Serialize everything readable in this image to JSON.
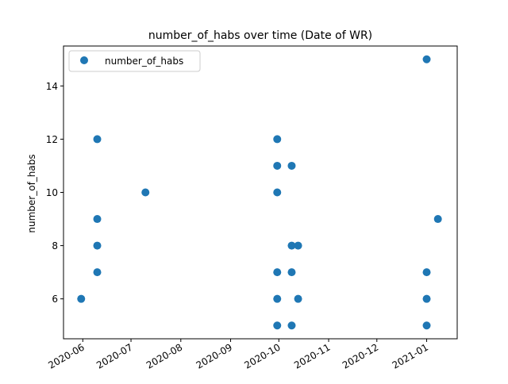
{
  "chart_data": {
    "type": "scatter",
    "title": "number_of_habs over time (Date of WR)",
    "xlabel": "",
    "ylabel": "number_of_habs",
    "x_type": "date",
    "xlim": [
      "2020-05-20",
      "2021-01-20"
    ],
    "ylim": [
      4.5,
      15.5
    ],
    "x_ticks": [
      "2020-06-01",
      "2020-07-01",
      "2020-08-01",
      "2020-09-01",
      "2020-10-01",
      "2020-11-01",
      "2020-12-01",
      "2021-01-01"
    ],
    "x_tick_labels": [
      "2020-06",
      "2020-07",
      "2020-08",
      "2020-09",
      "2020-10",
      "2020-11",
      "2020-12",
      "2021-01"
    ],
    "y_ticks": [
      6,
      8,
      10,
      12,
      14
    ],
    "y_tick_labels": [
      "6",
      "8",
      "10",
      "12",
      "14"
    ],
    "grid": false,
    "legend": {
      "position": "upper-left",
      "entries": [
        "number_of_habs"
      ]
    },
    "series": [
      {
        "name": "number_of_habs",
        "color": "#1f77b4",
        "points": [
          {
            "x": "2020-05-31",
            "y": 6
          },
          {
            "x": "2020-06-10",
            "y": 12
          },
          {
            "x": "2020-06-10",
            "y": 9
          },
          {
            "x": "2020-06-10",
            "y": 8
          },
          {
            "x": "2020-06-10",
            "y": 7
          },
          {
            "x": "2020-07-10",
            "y": 10
          },
          {
            "x": "2020-09-30",
            "y": 12
          },
          {
            "x": "2020-09-30",
            "y": 11
          },
          {
            "x": "2020-09-30",
            "y": 10
          },
          {
            "x": "2020-09-30",
            "y": 7
          },
          {
            "x": "2020-09-30",
            "y": 6
          },
          {
            "x": "2020-09-30",
            "y": 5
          },
          {
            "x": "2020-10-09",
            "y": 11
          },
          {
            "x": "2020-10-09",
            "y": 8
          },
          {
            "x": "2020-10-09",
            "y": 7
          },
          {
            "x": "2020-10-09",
            "y": 5
          },
          {
            "x": "2020-10-13",
            "y": 8
          },
          {
            "x": "2020-10-13",
            "y": 6
          },
          {
            "x": "2021-01-01",
            "y": 15
          },
          {
            "x": "2021-01-01",
            "y": 7
          },
          {
            "x": "2021-01-01",
            "y": 6
          },
          {
            "x": "2021-01-01",
            "y": 5
          },
          {
            "x": "2021-01-08",
            "y": 9
          }
        ]
      }
    ]
  }
}
